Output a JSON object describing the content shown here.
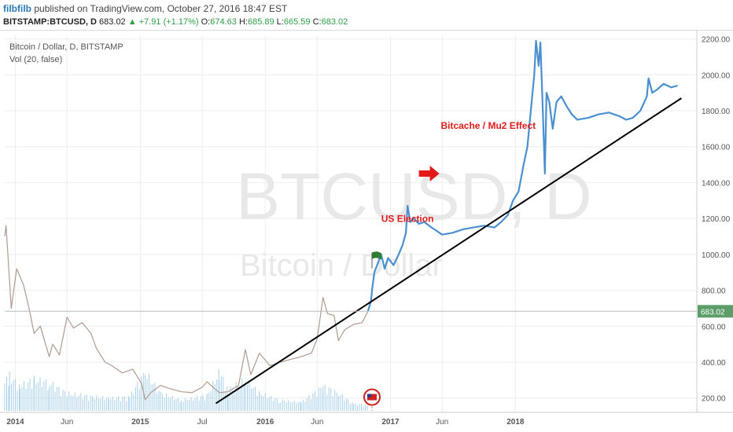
{
  "header": {
    "author": "filbfilb",
    "published": "published on TradingView.com, October 27, 2016 18:47 EST",
    "symbol": "BITSTAMP:BTCUSD, D",
    "last": "683.02",
    "change_arrow": "▲",
    "change": "+7.91 (+1.17%)",
    "o_label": "O:",
    "o_value": "674.63",
    "h_label": "H:",
    "h_value": "685.89",
    "l_label": "L:",
    "l_value": "665.59",
    "c_label": "C:",
    "c_value": "683.02"
  },
  "colors": {
    "candle": "#b09a90",
    "projection": "#4a8fcf",
    "volume": "#a8d0e8",
    "trendline": "#000000",
    "annotation": "#e31a1a",
    "price_tag": "#5c9d6a",
    "grid": "#eeeeee"
  },
  "chart_data": {
    "type": "line",
    "title": "Bitcoin / Dollar, D, BITSTAMP",
    "subtitle": "Vol (20, false)",
    "watermark_main": "BTCUSD, D",
    "watermark_sub": "Bitcoin / Dollar",
    "ylim": [
      120,
      2220
    ],
    "y_ticks": [
      "200.00",
      "400.00",
      "600.00",
      "800.00",
      "1000.00",
      "1200.00",
      "1400.00",
      "1600.00",
      "1800.00",
      "2000.00",
      "2200.00"
    ],
    "y_tick_values": [
      200,
      400,
      600,
      800,
      1000,
      1200,
      1400,
      1600,
      1800,
      2000,
      2200
    ],
    "x_ticks": [
      {
        "label": "2014",
        "date": "2014-01-01"
      },
      {
        "label": "Jun",
        "date": "2014-06-01"
      },
      {
        "label": "2015",
        "date": "2015-01-01"
      },
      {
        "label": "Jul",
        "date": "2015-07-01"
      },
      {
        "label": "2016",
        "date": "2016-01-01"
      },
      {
        "label": "Jun",
        "date": "2016-06-01"
      },
      {
        "label": "2017",
        "date": "2017-01-01"
      },
      {
        "label": "Jun",
        "date": "2017-06-01"
      },
      {
        "label": "2018",
        "date": "2018-01-01"
      }
    ],
    "x_range": [
      "2013-12-01",
      "2019-06-15"
    ],
    "current_price": {
      "label": "683.02",
      "value": 683.02
    },
    "series": [
      {
        "role": "historical",
        "points": [
          [
            "2013-12-01",
            1100
          ],
          [
            "2013-12-05",
            1160
          ],
          [
            "2013-12-20",
            700
          ],
          [
            "2014-01-05",
            920
          ],
          [
            "2014-01-25",
            830
          ],
          [
            "2014-02-10",
            700
          ],
          [
            "2014-02-25",
            560
          ],
          [
            "2014-03-15",
            600
          ],
          [
            "2014-04-10",
            430
          ],
          [
            "2014-04-20",
            500
          ],
          [
            "2014-05-10",
            440
          ],
          [
            "2014-06-01",
            650
          ],
          [
            "2014-06-20",
            590
          ],
          [
            "2014-07-15",
            620
          ],
          [
            "2014-08-10",
            560
          ],
          [
            "2014-08-25",
            480
          ],
          [
            "2014-09-20",
            400
          ],
          [
            "2014-10-10",
            380
          ],
          [
            "2014-11-10",
            340
          ],
          [
            "2014-12-10",
            360
          ],
          [
            "2015-01-05",
            280
          ],
          [
            "2015-01-15",
            190
          ],
          [
            "2015-02-01",
            230
          ],
          [
            "2015-03-01",
            270
          ],
          [
            "2015-04-01",
            250
          ],
          [
            "2015-05-01",
            235
          ],
          [
            "2015-06-01",
            230
          ],
          [
            "2015-07-01",
            260
          ],
          [
            "2015-07-15",
            290
          ],
          [
            "2015-08-20",
            230
          ],
          [
            "2015-09-15",
            235
          ],
          [
            "2015-10-15",
            270
          ],
          [
            "2015-11-04",
            470
          ],
          [
            "2015-11-20",
            330
          ],
          [
            "2015-12-15",
            450
          ],
          [
            "2016-01-15",
            380
          ],
          [
            "2016-02-15",
            400
          ],
          [
            "2016-03-15",
            415
          ],
          [
            "2016-04-15",
            430
          ],
          [
            "2016-05-15",
            450
          ],
          [
            "2016-06-01",
            530
          ],
          [
            "2016-06-18",
            760
          ],
          [
            "2016-07-01",
            670
          ],
          [
            "2016-07-20",
            660
          ],
          [
            "2016-08-02",
            520
          ],
          [
            "2016-08-20",
            580
          ],
          [
            "2016-09-15",
            610
          ],
          [
            "2016-10-10",
            620
          ],
          [
            "2016-10-27",
            683
          ]
        ]
      },
      {
        "role": "projection",
        "points": [
          [
            "2016-10-27",
            683
          ],
          [
            "2016-11-05",
            740
          ],
          [
            "2016-11-08",
            800
          ],
          [
            "2016-11-15",
            900
          ],
          [
            "2016-11-25",
            950
          ],
          [
            "2016-12-05",
            1000
          ],
          [
            "2016-12-15",
            920
          ],
          [
            "2016-12-25",
            980
          ],
          [
            "2017-01-10",
            940
          ],
          [
            "2017-01-25",
            1000
          ],
          [
            "2017-02-05",
            1050
          ],
          [
            "2017-02-15",
            1120
          ],
          [
            "2017-02-20",
            1270
          ],
          [
            "2017-02-28",
            1180
          ],
          [
            "2017-03-10",
            1200
          ],
          [
            "2017-03-25",
            1170
          ],
          [
            "2017-04-10",
            1180
          ],
          [
            "2017-05-01",
            1150
          ],
          [
            "2017-06-01",
            1110
          ],
          [
            "2017-07-01",
            1120
          ],
          [
            "2017-08-01",
            1140
          ],
          [
            "2017-09-01",
            1150
          ],
          [
            "2017-10-01",
            1160
          ],
          [
            "2017-11-01",
            1150
          ],
          [
            "2017-11-20",
            1180
          ],
          [
            "2017-12-10",
            1220
          ],
          [
            "2017-12-25",
            1300
          ],
          [
            "2018-01-10",
            1350
          ],
          [
            "2018-01-25",
            1500
          ],
          [
            "2018-02-05",
            1600
          ],
          [
            "2018-02-15",
            1800
          ],
          [
            "2018-02-25",
            2000
          ],
          [
            "2018-03-02",
            2190
          ],
          [
            "2018-03-10",
            2050
          ],
          [
            "2018-03-15",
            2180
          ],
          [
            "2018-03-22",
            1800
          ],
          [
            "2018-03-28",
            1450
          ],
          [
            "2018-04-02",
            1900
          ],
          [
            "2018-04-10",
            1850
          ],
          [
            "2018-04-20",
            1700
          ],
          [
            "2018-05-01",
            1850
          ],
          [
            "2018-05-15",
            1880
          ],
          [
            "2018-06-01",
            1820
          ],
          [
            "2018-06-15",
            1780
          ],
          [
            "2018-07-01",
            1750
          ],
          [
            "2018-08-01",
            1760
          ],
          [
            "2018-09-01",
            1780
          ],
          [
            "2018-10-01",
            1790
          ],
          [
            "2018-11-01",
            1770
          ],
          [
            "2018-11-20",
            1750
          ],
          [
            "2018-12-10",
            1760
          ],
          [
            "2019-01-01",
            1800
          ],
          [
            "2019-01-20",
            1880
          ],
          [
            "2019-01-25",
            1980
          ],
          [
            "2019-02-05",
            1900
          ],
          [
            "2019-02-20",
            1920
          ],
          [
            "2019-03-10",
            1950
          ],
          [
            "2019-04-01",
            1930
          ],
          [
            "2019-04-20",
            1940
          ]
        ]
      }
    ],
    "trendline": {
      "from": [
        "2015-08-10",
        170
      ],
      "to": [
        "2019-05-01",
        1870
      ]
    },
    "annotations": [
      {
        "text": "Bitcache / Mu2 Effect",
        "date": "2017-05-28",
        "value": 1700,
        "color": "#e31a1a"
      },
      {
        "text": "US Election",
        "date": "2016-12-05",
        "value": 1180,
        "color": "#e31a1a"
      }
    ],
    "arrow_marker": {
      "date": "2017-05-10",
      "value": 1450
    },
    "flag_marker": {
      "date": "2016-11-08",
      "value": 1010
    },
    "event_marker": {
      "date": "2016-11-08",
      "value": 205
    },
    "volume": [
      [
        "2013-12-01",
        40
      ],
      [
        "2013-12-15",
        50
      ],
      [
        "2014-01-15",
        35
      ],
      [
        "2014-02-25",
        45
      ],
      [
        "2014-04-10",
        40
      ],
      [
        "2014-06-01",
        25
      ],
      [
        "2014-08-15",
        20
      ],
      [
        "2014-10-01",
        18
      ],
      [
        "2014-12-01",
        20
      ],
      [
        "2015-01-15",
        55
      ],
      [
        "2015-03-01",
        25
      ],
      [
        "2015-05-01",
        15
      ],
      [
        "2015-07-15",
        22
      ],
      [
        "2015-08-20",
        55
      ],
      [
        "2015-09-15",
        30
      ],
      [
        "2015-11-04",
        45
      ],
      [
        "2015-12-15",
        25
      ],
      [
        "2016-02-15",
        15
      ],
      [
        "2016-04-15",
        12
      ],
      [
        "2016-06-18",
        35
      ],
      [
        "2016-08-02",
        25
      ],
      [
        "2016-09-15",
        10
      ],
      [
        "2016-10-27",
        8
      ]
    ]
  }
}
